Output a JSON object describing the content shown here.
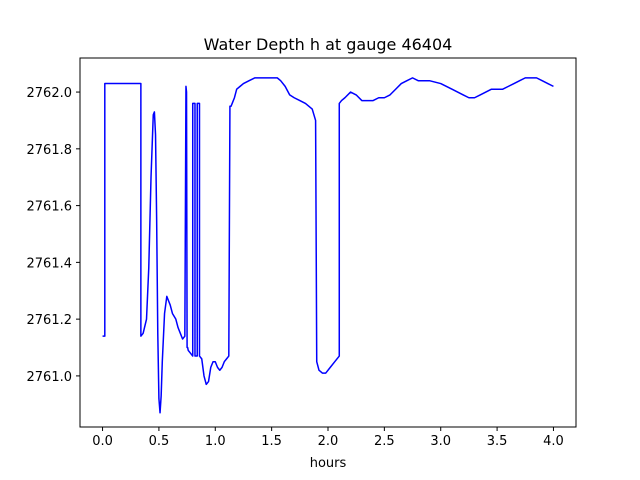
{
  "chart_data": {
    "type": "line",
    "title": "Water Depth h at gauge 46404",
    "xlabel": "hours",
    "ylabel": "",
    "xlim": [
      -0.2,
      4.2
    ],
    "ylim": [
      2760.82,
      2762.12
    ],
    "xticks": [
      0.0,
      0.5,
      1.0,
      1.5,
      2.0,
      2.5,
      3.0,
      3.5,
      4.0
    ],
    "xtick_labels": [
      "0.0",
      "0.5",
      "1.0",
      "1.5",
      "2.0",
      "2.5",
      "3.0",
      "3.5",
      "4.0"
    ],
    "yticks": [
      2761.0,
      2761.2,
      2761.4,
      2761.6,
      2761.8,
      2762.0
    ],
    "ytick_labels": [
      "2761.0",
      "2761.2",
      "2761.4",
      "2761.6",
      "2761.8",
      "2762.0"
    ],
    "grid": false,
    "series": [
      {
        "color": "#0000ff",
        "x": [
          0.0,
          0.02,
          0.02,
          0.34,
          0.34,
          0.36,
          0.39,
          0.41,
          0.43,
          0.45,
          0.46,
          0.47,
          0.48,
          0.49,
          0.5,
          0.51,
          0.52,
          0.53,
          0.55,
          0.57,
          0.58,
          0.6,
          0.62,
          0.65,
          0.67,
          0.69,
          0.71,
          0.73,
          0.74,
          0.745,
          0.75,
          0.755,
          0.76,
          0.78,
          0.8,
          0.8,
          0.82,
          0.82,
          0.84,
          0.84,
          0.86,
          0.86,
          0.88,
          0.9,
          0.92,
          0.94,
          0.96,
          0.98,
          1.0,
          1.02,
          1.04,
          1.06,
          1.08,
          1.1,
          1.12,
          1.13,
          1.14,
          1.15,
          1.17,
          1.19,
          1.22,
          1.25,
          1.3,
          1.35,
          1.4,
          1.45,
          1.5,
          1.55,
          1.58,
          1.62,
          1.66,
          1.7,
          1.75,
          1.8,
          1.86,
          1.89,
          1.9,
          1.9,
          1.92,
          1.95,
          1.98,
          2.02,
          2.06,
          2.1,
          2.1,
          2.12,
          2.15,
          2.2,
          2.25,
          2.3,
          2.35,
          2.4,
          2.45,
          2.5,
          2.55,
          2.6,
          2.65,
          2.7,
          2.75,
          2.8,
          2.9,
          3.0,
          3.1,
          3.2,
          3.25,
          3.3,
          3.35,
          3.4,
          3.45,
          3.5,
          3.55,
          3.6,
          3.65,
          3.7,
          3.75,
          3.8,
          3.85,
          3.9,
          3.95,
          4.0
        ],
        "y": [
          2761.14,
          2761.14,
          2762.03,
          2762.03,
          2761.14,
          2761.15,
          2761.2,
          2761.38,
          2761.7,
          2761.92,
          2761.93,
          2761.85,
          2761.55,
          2761.15,
          2760.92,
          2760.87,
          2760.93,
          2761.05,
          2761.22,
          2761.28,
          2761.27,
          2761.25,
          2761.22,
          2761.2,
          2761.17,
          2761.15,
          2761.13,
          2761.14,
          2762.02,
          2762.0,
          2761.1,
          2761.1,
          2761.09,
          2761.08,
          2761.07,
          2761.96,
          2761.96,
          2761.07,
          2761.07,
          2761.96,
          2761.96,
          2761.07,
          2761.06,
          2761.0,
          2760.97,
          2760.98,
          2761.03,
          2761.05,
          2761.05,
          2761.03,
          2761.02,
          2761.03,
          2761.05,
          2761.06,
          2761.07,
          2761.95,
          2761.95,
          2761.96,
          2761.98,
          2762.01,
          2762.02,
          2762.03,
          2762.04,
          2762.05,
          2762.05,
          2762.05,
          2762.05,
          2762.05,
          2762.04,
          2762.02,
          2761.99,
          2761.98,
          2761.97,
          2761.96,
          2761.94,
          2761.9,
          2761.05,
          2761.05,
          2761.02,
          2761.01,
          2761.01,
          2761.03,
          2761.05,
          2761.07,
          2761.96,
          2761.97,
          2761.98,
          2762.0,
          2761.99,
          2761.97,
          2761.97,
          2761.97,
          2761.98,
          2761.98,
          2761.99,
          2762.01,
          2762.03,
          2762.04,
          2762.05,
          2762.04,
          2762.04,
          2762.03,
          2762.01,
          2761.99,
          2761.98,
          2761.98,
          2761.99,
          2762.0,
          2762.01,
          2762.01,
          2762.01,
          2762.02,
          2762.03,
          2762.04,
          2762.05,
          2762.05,
          2762.05,
          2762.04,
          2762.03,
          2762.02
        ]
      }
    ]
  }
}
